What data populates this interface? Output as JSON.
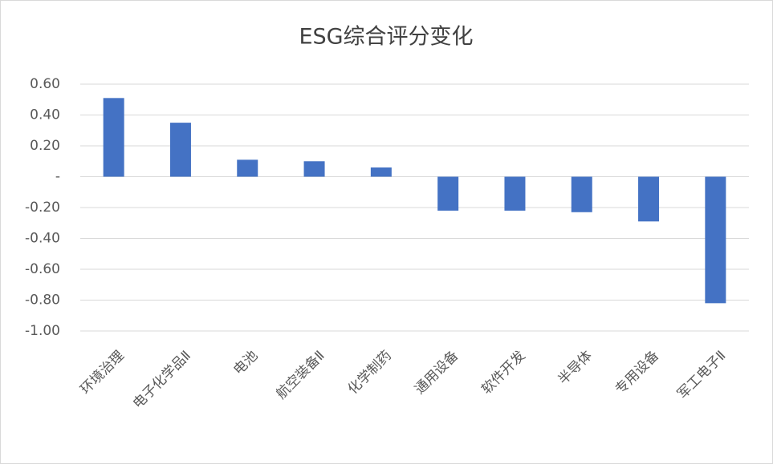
{
  "chart_data": {
    "type": "bar",
    "title": "ESG综合评分变化",
    "categories": [
      "环境治理",
      "电子化学品Ⅱ",
      "电池",
      "航空装备Ⅱ",
      "化学制药",
      "通用设备",
      "软件开发",
      "半导体",
      "专用设备",
      "军工电子Ⅱ"
    ],
    "values": [
      0.51,
      0.35,
      0.11,
      0.1,
      0.06,
      -0.22,
      -0.22,
      -0.23,
      -0.29,
      -0.82
    ],
    "color": "#4472c4",
    "ylim": [
      -1,
      0.6
    ],
    "yticks": [
      {
        "value": 0.6,
        "label": "0.60"
      },
      {
        "value": 0.4,
        "label": "0.40"
      },
      {
        "value": 0.2,
        "label": "0.20"
      },
      {
        "value": 0,
        "label": "-"
      },
      {
        "value": -0.2,
        "label": "-0.20"
      },
      {
        "value": -0.4,
        "label": "-0.40"
      },
      {
        "value": -0.6,
        "label": "-0.60"
      },
      {
        "value": -0.8,
        "label": "-0.80"
      },
      {
        "value": -1,
        "label": "-1.00"
      }
    ],
    "grid": true
  }
}
